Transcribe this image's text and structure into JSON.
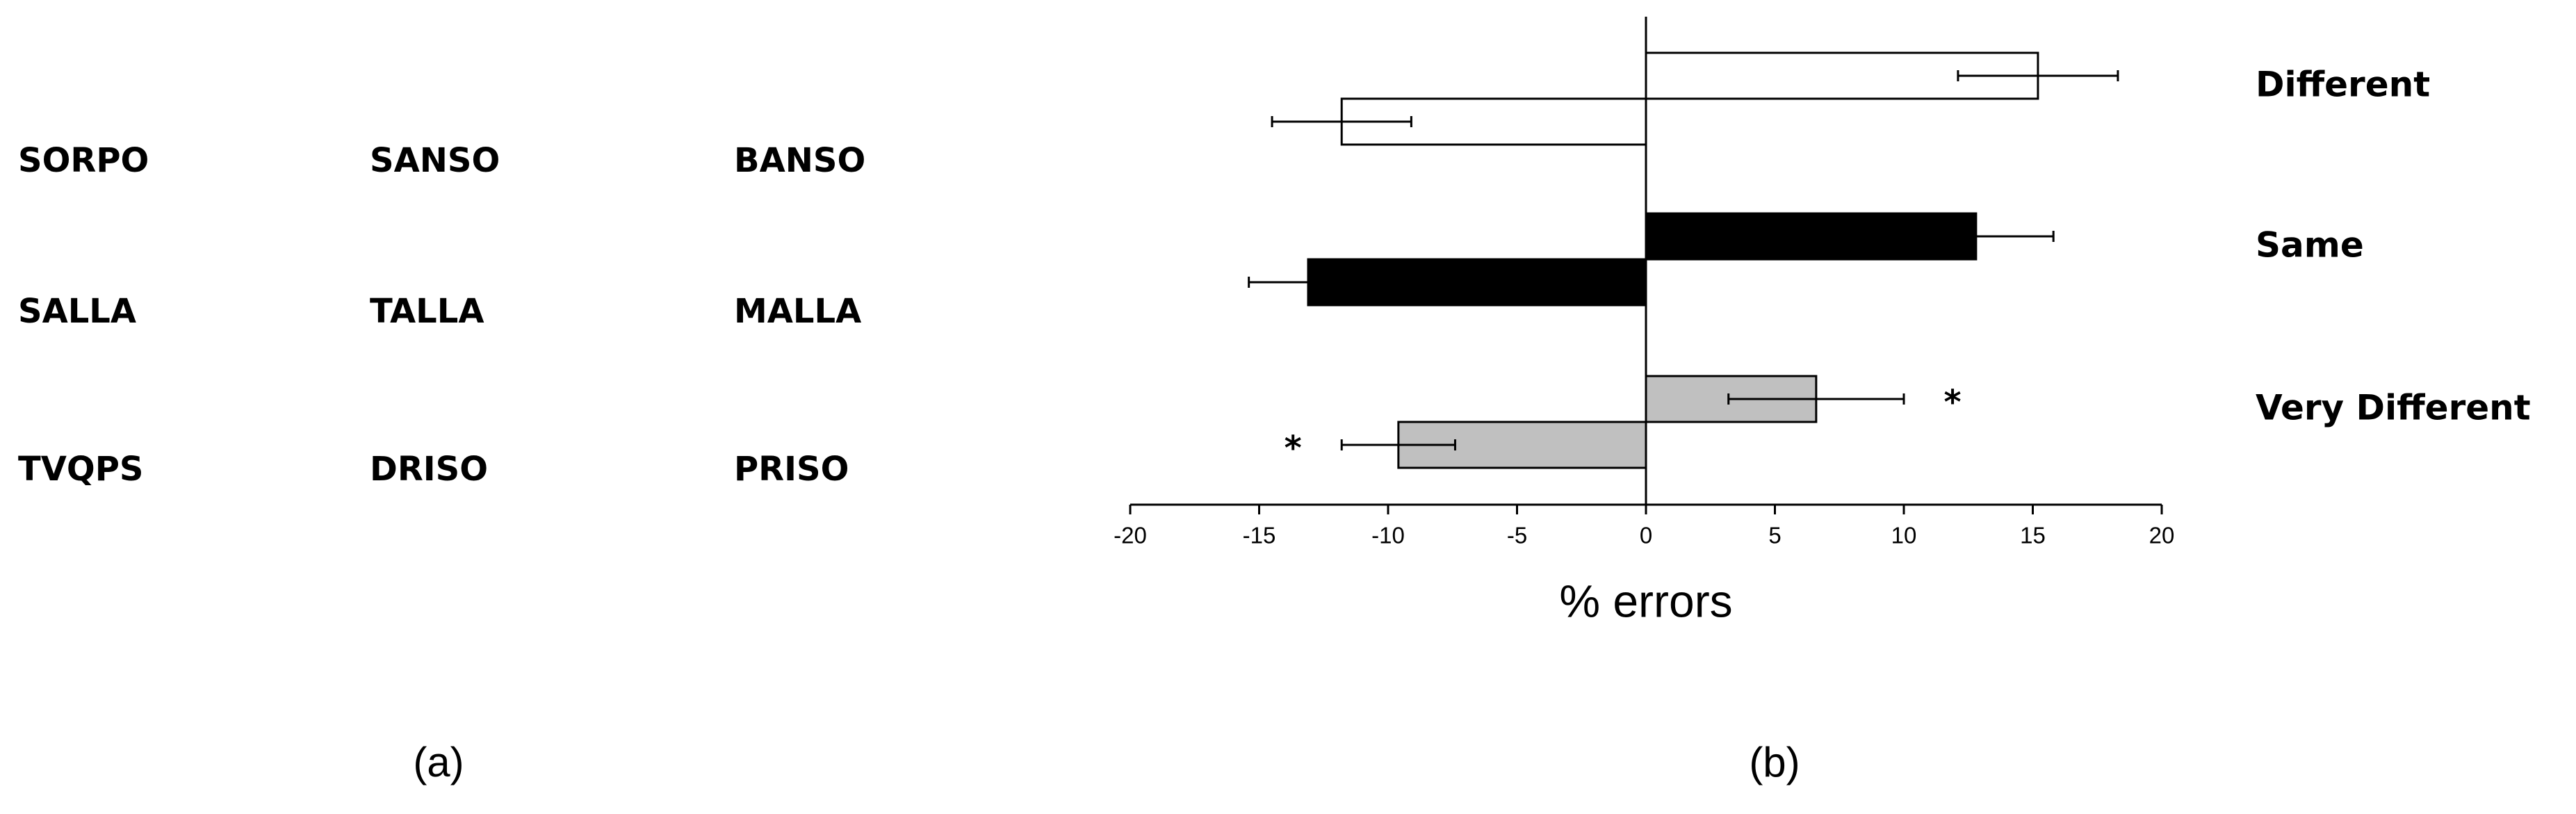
{
  "panel_a": {
    "rows": [
      [
        "SORPO",
        "SANSO",
        "BANSO"
      ],
      [
        "SALLA",
        "TALLA",
        "MALLA"
      ],
      [
        "TVQPS",
        "DRISO",
        "PRISO"
      ]
    ]
  },
  "panel_labels": [
    "(a)",
    "(b)"
  ],
  "chart_data": {
    "type": "bar",
    "orientation": "horizontal",
    "categories": [
      "Different",
      "Same",
      "Very Different"
    ],
    "colors": [
      "#ffffff",
      "#000000",
      "#c0c0c0"
    ],
    "series": [
      {
        "values": [
          15.2,
          12.8,
          6.6
        ],
        "errors": [
          3.1,
          3.0,
          3.4
        ]
      },
      {
        "values": [
          -11.8,
          -13.1,
          -9.6
        ],
        "errors": [
          2.7,
          2.3,
          2.2
        ]
      }
    ],
    "significance": [
      {
        "category": 2,
        "series": 0,
        "label": "*"
      },
      {
        "category": 2,
        "series": 1,
        "label": "*"
      }
    ],
    "xlabel": "% errors",
    "xlim": [
      -20,
      20
    ],
    "xticks": [
      -20,
      -15,
      -10,
      -5,
      0,
      5,
      10,
      15,
      20
    ]
  }
}
